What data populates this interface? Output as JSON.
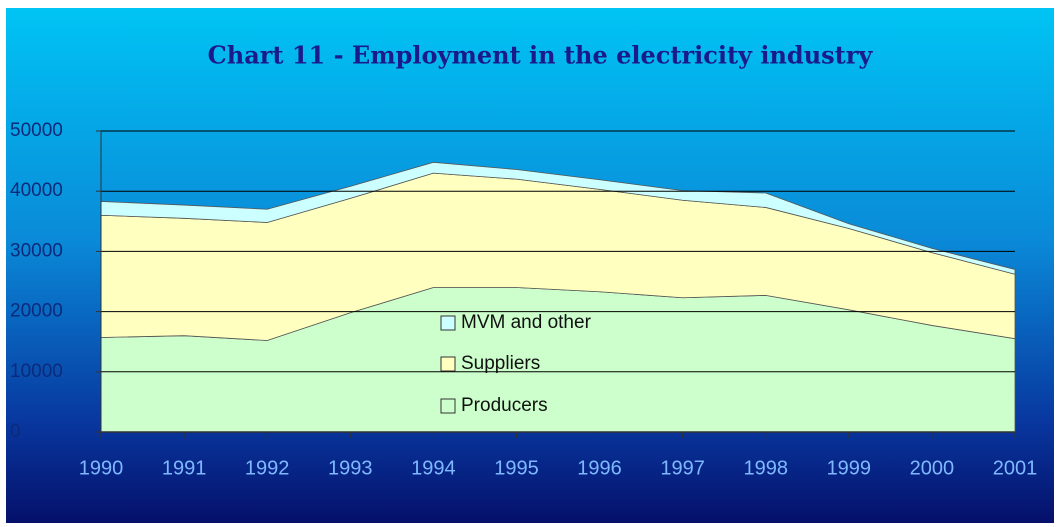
{
  "chart_data": {
    "type": "stacked_area",
    "title": "Chart 11 - Employment in the electricity industry",
    "categories": [
      "1990",
      "1991",
      "1992",
      "1993",
      "1994",
      "1995",
      "1996",
      "1997",
      "1998",
      "1999",
      "2000",
      "2001"
    ],
    "series": [
      {
        "name": "Producers",
        "color": "#ccffcc",
        "values": [
          15700,
          16000,
          15200,
          19800,
          24000,
          24000,
          23300,
          22300,
          22700,
          20300,
          17700,
          15500
        ]
      },
      {
        "name": "Suppliers",
        "color": "#ffffc0",
        "values": [
          20300,
          19500,
          19600,
          19000,
          19000,
          18000,
          17000,
          16200,
          14600,
          13500,
          12100,
          10700
        ]
      },
      {
        "name": "MVM and other",
        "color": "#ccffff",
        "values": [
          2300,
          2200,
          2200,
          2000,
          1800,
          1600,
          1600,
          1600,
          2400,
          800,
          700,
          800
        ]
      }
    ],
    "ylim": [
      0,
      50000
    ],
    "yticks": [
      0,
      10000,
      20000,
      30000,
      40000,
      50000
    ],
    "grid": true
  }
}
